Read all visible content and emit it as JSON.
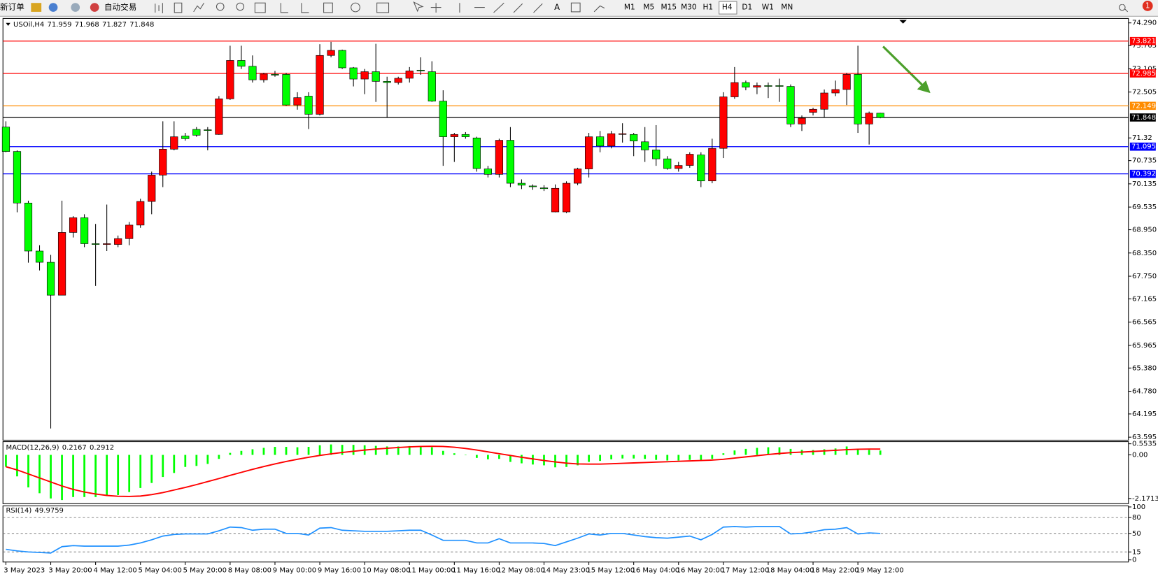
{
  "toolbar": {
    "new_order": "新订单",
    "auto_trade": "自动交易",
    "timeframes": [
      "M1",
      "M5",
      "M15",
      "M30",
      "H1",
      "H4",
      "D1",
      "W1",
      "MN"
    ],
    "active_timeframe": "H4",
    "badge": "1"
  },
  "chart_data": [
    {
      "type": "candlestick",
      "symbol": "USOil,H4",
      "categories": [
        "3 May 2023",
        null,
        null,
        null,
        "3 May 20:00",
        null,
        null,
        null,
        "4 May 12:00",
        null,
        null,
        null,
        "5 May 04:00",
        null,
        null,
        null,
        "5 May 20:00",
        null,
        null,
        null,
        "8 May 08:00",
        null,
        null,
        null,
        "9 May 00:00",
        null,
        null,
        null,
        "9 May 16:00",
        null,
        null,
        null,
        "10 May 08:00",
        null,
        null,
        null,
        "11 May 00:00",
        null,
        null,
        null,
        "11 May 16:00",
        null,
        null,
        null,
        "12 May 08:00",
        null,
        null,
        null,
        "14 May 23:00",
        null,
        null,
        null,
        "15 May 12:00",
        null,
        null,
        null,
        "16 May 04:00",
        null,
        null,
        null,
        "16 May 20:00",
        null,
        null,
        null,
        "17 May 12:00",
        null,
        null,
        null,
        "18 May 04:00",
        null,
        null,
        null,
        "18 May 22:00",
        null,
        null,
        null,
        "19 May 12:00",
        null,
        null
      ],
      "open": [
        71.6,
        70.97,
        69.64,
        68.4,
        68.11,
        67.26,
        68.88,
        69.26,
        68.59,
        68.57,
        68.57,
        68.72,
        69.07,
        69.68,
        70.36,
        71.03,
        71.37,
        71.54,
        71.53,
        71.41,
        72.33,
        73.32,
        73.17,
        72.82,
        72.96,
        72.96,
        72.17,
        72.4,
        71.93,
        73.45,
        73.58,
        73.13,
        72.84,
        73.03,
        72.78,
        72.75,
        72.86,
        73.07,
        73.03,
        72.27,
        71.35,
        71.41,
        71.32,
        70.52,
        70.38,
        71.26,
        70.15,
        70.08,
        70.03,
        69.41,
        69.41,
        70.15,
        70.52,
        71.35,
        71.11,
        71.41,
        71.41,
        71.22,
        71.01,
        70.78,
        70.53,
        70.61,
        70.88,
        70.21,
        71.05,
        72.38,
        72.75,
        72.63,
        72.67,
        72.67,
        72.65,
        71.68,
        71.98,
        72.06,
        72.48,
        72.57,
        72.96,
        71.68,
        71.959
      ],
      "high": [
        71.75,
        71.0,
        69.7,
        68.55,
        68.3,
        69.7,
        69.3,
        69.35,
        69.1,
        69.6,
        68.8,
        69.15,
        69.75,
        70.45,
        71.75,
        71.75,
        71.45,
        71.6,
        71.6,
        72.4,
        73.7,
        73.7,
        73.45,
        73.0,
        73.05,
        73.0,
        72.5,
        72.5,
        73.74,
        73.8,
        73.6,
        73.15,
        73.1,
        73.75,
        72.9,
        72.9,
        73.15,
        73.4,
        73.3,
        72.55,
        71.45,
        71.47,
        71.35,
        70.6,
        71.3,
        71.6,
        70.25,
        70.12,
        70.1,
        70.12,
        70.2,
        70.55,
        71.45,
        71.5,
        71.5,
        71.7,
        71.45,
        71.6,
        71.65,
        70.85,
        70.7,
        70.95,
        70.95,
        71.3,
        72.5,
        73.15,
        72.8,
        72.75,
        72.75,
        72.85,
        72.7,
        71.9,
        72.1,
        72.57,
        72.8,
        73.0,
        73.7,
        72.0,
        71.968
      ],
      "low": [
        70.95,
        69.4,
        68.1,
        67.9,
        63.82,
        67.26,
        68.75,
        68.5,
        67.5,
        68.4,
        68.5,
        68.55,
        69.0,
        69.35,
        70.05,
        71.0,
        71.25,
        71.35,
        71.0,
        71.4,
        72.3,
        73.1,
        72.75,
        72.75,
        72.9,
        72.15,
        72.05,
        71.55,
        71.9,
        73.4,
        73.1,
        72.65,
        72.45,
        72.25,
        71.85,
        72.7,
        72.75,
        72.95,
        72.25,
        70.6,
        70.7,
        71.3,
        70.45,
        70.3,
        70.3,
        70.05,
        70.0,
        69.98,
        69.95,
        69.4,
        69.38,
        70.1,
        70.3,
        70.95,
        71.05,
        71.2,
        70.85,
        70.7,
        70.6,
        70.5,
        70.45,
        70.55,
        70.05,
        70.15,
        70.8,
        72.33,
        72.55,
        72.45,
        72.35,
        72.25,
        71.6,
        71.5,
        71.9,
        71.85,
        72.4,
        72.17,
        71.45,
        71.15,
        71.827
      ],
      "close": [
        70.97,
        69.64,
        68.4,
        68.11,
        67.26,
        68.88,
        69.26,
        68.59,
        68.57,
        68.59,
        68.72,
        69.07,
        69.68,
        70.36,
        71.03,
        71.35,
        71.3,
        71.39,
        71.52,
        72.33,
        73.32,
        73.17,
        72.82,
        72.97,
        72.95,
        72.17,
        72.36,
        71.93,
        73.45,
        73.58,
        73.13,
        72.84,
        73.03,
        72.78,
        72.75,
        72.86,
        73.05,
        73.06,
        72.27,
        71.35,
        71.41,
        71.35,
        70.53,
        70.38,
        71.26,
        70.15,
        70.1,
        70.06,
        70.02,
        70.02,
        70.15,
        70.52,
        71.35,
        71.11,
        71.43,
        71.43,
        71.24,
        71.01,
        70.78,
        70.53,
        70.61,
        70.9,
        70.21,
        71.05,
        72.38,
        72.75,
        72.63,
        72.67,
        72.66,
        72.66,
        71.68,
        71.83,
        72.06,
        72.48,
        72.57,
        72.96,
        71.68,
        71.96,
        71.848
      ],
      "up_color": "#ff0000",
      "down_color": "#00ff00",
      "ylim": [
        63.537,
        74.385
      ],
      "yticks": [
        {
          "value": 74.29,
          "label": "74.290"
        },
        73.705,
        73.105,
        72.505,
        71.32,
        70.735,
        70.135,
        69.535,
        {
          "value": 68.95,
          "label": "68.950"
        },
        {
          "value": 68.35,
          "label": "68.350"
        },
        {
          "value": 67.75,
          "label": "67.750"
        },
        67.165,
        66.565,
        65.965,
        {
          "value": 65.38,
          "label": "65.380"
        },
        {
          "value": 64.78,
          "label": "64.780"
        },
        64.195,
        63.595
      ],
      "hlines": [
        {
          "value": 73.821,
          "color": "#ff0000"
        },
        {
          "value": 72.985,
          "color": "#ff0000"
        },
        {
          "value": 72.149,
          "color": "#ff8c00"
        },
        {
          "value": 71.848,
          "color": "#000000"
        },
        {
          "value": 71.095,
          "color": "#0000ff"
        },
        {
          "value": 70.392,
          "color": "#0000ff"
        }
      ]
    },
    {
      "type": "macd",
      "name": "MACD(12,26,9)",
      "histogram": {
        "color": "#00ff00",
        "values": [
          -0.59,
          -1.07,
          -1.62,
          -1.91,
          -2.17,
          -2.25,
          -2.1,
          -2.1,
          -2.1,
          -2.05,
          -2.0,
          -1.85,
          -1.65,
          -1.4,
          -1.1,
          -0.9,
          -0.6,
          -0.55,
          -0.45,
          -0.2,
          0.1,
          0.2,
          0.28,
          0.35,
          0.4,
          0.4,
          0.38,
          0.4,
          0.48,
          0.52,
          0.5,
          0.5,
          0.48,
          0.45,
          0.42,
          0.42,
          0.44,
          0.45,
          0.38,
          0.2,
          0.08,
          0.0,
          -0.15,
          -0.22,
          -0.2,
          -0.35,
          -0.42,
          -0.48,
          -0.52,
          -0.62,
          -0.6,
          -0.52,
          -0.35,
          -0.3,
          -0.22,
          -0.18,
          -0.18,
          -0.2,
          -0.25,
          -0.28,
          -0.28,
          -0.25,
          -0.3,
          -0.2,
          0.08,
          0.22,
          0.3,
          0.35,
          0.38,
          0.38,
          0.3,
          0.25,
          0.24,
          0.28,
          0.32,
          0.42,
          0.3,
          0.25,
          0.2167
        ]
      },
      "signal": {
        "color": "#ff0000",
        "values": [
          -0.59,
          -0.75,
          -0.95,
          -1.15,
          -1.35,
          -1.55,
          -1.72,
          -1.85,
          -1.95,
          -2.02,
          -2.06,
          -2.07,
          -2.05,
          -1.98,
          -1.88,
          -1.75,
          -1.62,
          -1.48,
          -1.33,
          -1.18,
          -1.02,
          -0.87,
          -0.72,
          -0.58,
          -0.45,
          -0.33,
          -0.22,
          -0.12,
          -0.03,
          0.05,
          0.12,
          0.18,
          0.24,
          0.29,
          0.33,
          0.37,
          0.4,
          0.42,
          0.43,
          0.42,
          0.38,
          0.32,
          0.24,
          0.15,
          0.06,
          -0.03,
          -0.12,
          -0.2,
          -0.28,
          -0.35,
          -0.41,
          -0.45,
          -0.46,
          -0.46,
          -0.44,
          -0.42,
          -0.4,
          -0.38,
          -0.36,
          -0.34,
          -0.32,
          -0.3,
          -0.28,
          -0.26,
          -0.22,
          -0.16,
          -0.1,
          -0.04,
          0.02,
          0.07,
          0.11,
          0.14,
          0.17,
          0.2,
          0.23,
          0.26,
          0.28,
          0.29,
          0.2912
        ]
      },
      "ylim": [
        -2.43,
        0.66
      ],
      "yticks": [
        0.5535,
        {
          "value": 0,
          "label": "0.00"
        },
        -2.1713
      ]
    },
    {
      "type": "line",
      "name": "RSI(14)",
      "color": "#1e90ff",
      "values": [
        20,
        17,
        15,
        14,
        13,
        25,
        27,
        26,
        26,
        26,
        26,
        28,
        32,
        38,
        45,
        48,
        49,
        49,
        49,
        55,
        62,
        61,
        56,
        58,
        58,
        50,
        50,
        47,
        60,
        61,
        56,
        55,
        54,
        54,
        54,
        55,
        56,
        56,
        47,
        37,
        37,
        37,
        32,
        32,
        40,
        32,
        32,
        32,
        31,
        27,
        34,
        41,
        49,
        47,
        50,
        50,
        47,
        44,
        42,
        41,
        43,
        45,
        38,
        48,
        62,
        63,
        62,
        63,
        63,
        63,
        49,
        50,
        53,
        57,
        58,
        61,
        49,
        51,
        49.9759
      ],
      "ylim": [
        -4,
        102
      ],
      "yticks": [
        100,
        80,
        50,
        15,
        0
      ]
    }
  ]
}
